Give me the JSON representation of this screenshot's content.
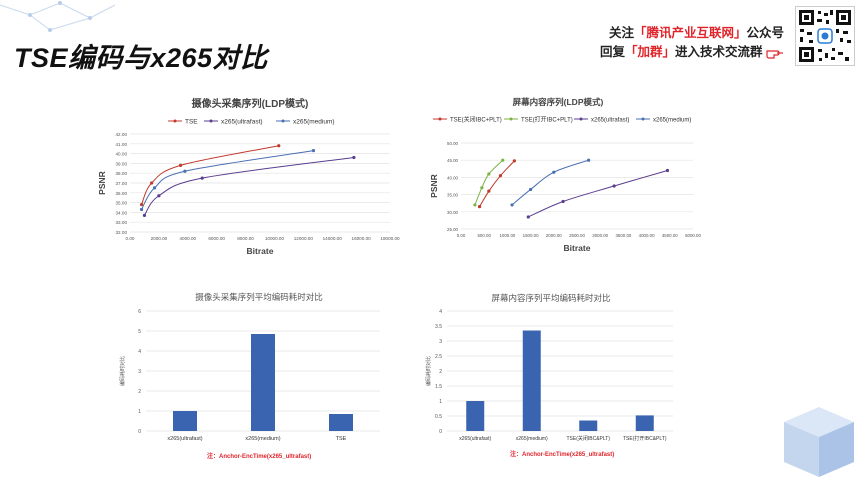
{
  "header": {
    "title": "TSE编码与x265对比",
    "follow_prefix": "关注",
    "follow_highlight": "「腾讯产业互联网」",
    "follow_suffix": "公众号",
    "reply_prefix": "回复",
    "reply_highlight": "「加群」",
    "reply_suffix": "进入技术交流群"
  },
  "notes": {
    "left": "注：Anchor-EncTime(x265_ultrafast)",
    "right": "注：Anchor-EncTime(x265_ultrafast)"
  },
  "colors": {
    "tse": "#c0392b",
    "ultrafast": "#5b3d8f",
    "medium": "#4a6fb3",
    "tse_ibc_off": "#c0392b",
    "tse_ibc_on": "#7cb342",
    "bar": "#3a64b0",
    "note": "#e0242b"
  },
  "chart_data": [
    {
      "type": "line",
      "title": "摄像头采集序列(LDP模式)",
      "xlabel": "Bitrate",
      "ylabel": "PSNR",
      "xlim": [
        0,
        18000
      ],
      "ylim": [
        32,
        42
      ],
      "xticks": [
        "0.00",
        "2000.00",
        "4000.00",
        "6000.00",
        "8000.00",
        "10000.00",
        "12000.00",
        "14000.00",
        "16000.00",
        "18000.00"
      ],
      "yticks": [
        "32.00",
        "33.00",
        "34.00",
        "35.00",
        "36.00",
        "37.00",
        "38.00",
        "39.00",
        "40.00",
        "41.00",
        "42.00"
      ],
      "legend_position": "top",
      "series": [
        {
          "name": "TSE",
          "color_key": "tse",
          "x": [
            800,
            1500,
            3500,
            10300
          ],
          "y": [
            34.8,
            37.0,
            38.8,
            40.8
          ]
        },
        {
          "name": "x265(ultrafast)",
          "color_key": "ultrafast",
          "x": [
            1000,
            2000,
            5000,
            15500
          ],
          "y": [
            33.7,
            35.7,
            37.5,
            39.6
          ]
        },
        {
          "name": "x265(medium)",
          "color_key": "medium",
          "x": [
            800,
            1700,
            3800,
            12700
          ],
          "y": [
            34.3,
            36.5,
            38.2,
            40.3
          ]
        }
      ]
    },
    {
      "type": "line",
      "title": "屏幕内容序列(LDP模式)",
      "xlabel": "Bitrate",
      "ylabel": "PSNR",
      "xlim": [
        0,
        5000
      ],
      "ylim": [
        25,
        50
      ],
      "xticks": [
        "0.00",
        "500.00",
        "1000.00",
        "1500.00",
        "2000.00",
        "2500.00",
        "3000.00",
        "3500.00",
        "4000.00",
        "4500.00",
        "5000.00"
      ],
      "yticks": [
        "25.00",
        "30.00",
        "35.00",
        "40.00",
        "45.00",
        "50.00"
      ],
      "legend_position": "top",
      "series": [
        {
          "name": "TSE(关闭IBC+PLT)",
          "color_key": "tse_ibc_off",
          "x": [
            400,
            600,
            850,
            1150
          ],
          "y": [
            31.5,
            36.0,
            40.5,
            44.8
          ]
        },
        {
          "name": "TSE(打开IBC+PLT)",
          "color_key": "tse_ibc_on",
          "x": [
            300,
            450,
            600,
            900
          ],
          "y": [
            32.0,
            37.0,
            41.0,
            45.0
          ]
        },
        {
          "name": "x265(ultrafast)",
          "color_key": "ultrafast",
          "x": [
            1450,
            2200,
            3300,
            4450
          ],
          "y": [
            28.5,
            33.0,
            37.5,
            42.0
          ]
        },
        {
          "name": "x265(medium)",
          "color_key": "medium",
          "x": [
            1100,
            1500,
            2000,
            2750
          ],
          "y": [
            32.0,
            36.5,
            41.5,
            45.0
          ]
        }
      ]
    },
    {
      "type": "bar",
      "title": "摄像头采集序列平均编码耗时对比",
      "ylabel": "编码耗时对比",
      "ylim": [
        0,
        6
      ],
      "yticks": [
        "0",
        "1",
        "2",
        "3",
        "4",
        "5",
        "6"
      ],
      "categories": [
        "x265(ultrafast)",
        "x265(medium)",
        "TSE"
      ],
      "values": [
        1.0,
        4.85,
        0.85
      ]
    },
    {
      "type": "bar",
      "title": "屏幕内容序列平均编码耗时对比",
      "ylabel": "编码耗时对比",
      "ylim": [
        0,
        4
      ],
      "yticks": [
        "0",
        "0.5",
        "1",
        "1.5",
        "2",
        "2.5",
        "3",
        "3.5",
        "4"
      ],
      "categories": [
        "x265(ultrafast)",
        "x265(medium)",
        "TSE(关闭IBC&PLT)",
        "TSE(打开IBC&PLT)"
      ],
      "values": [
        1.0,
        3.35,
        0.35,
        0.52
      ]
    }
  ]
}
